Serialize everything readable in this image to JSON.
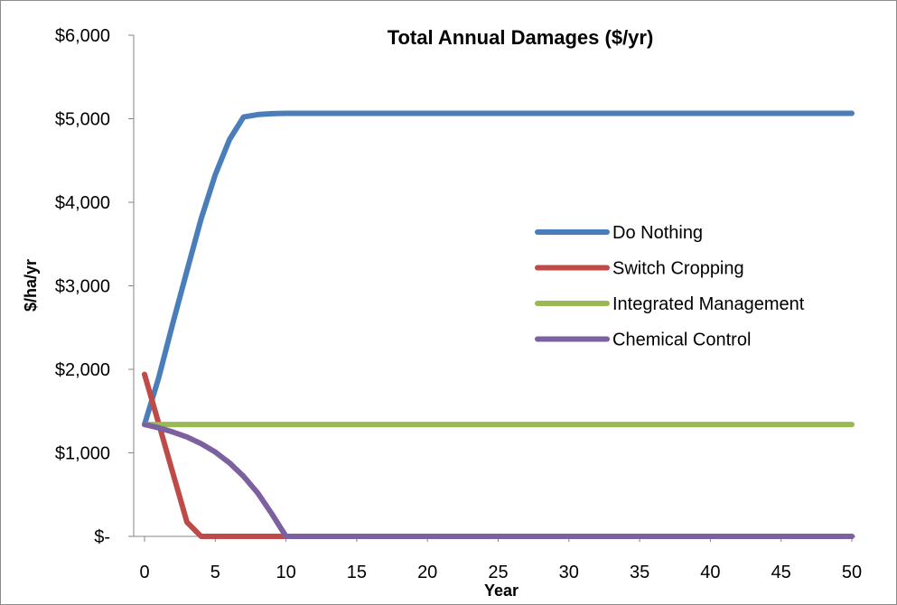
{
  "chart_data": {
    "type": "line",
    "title": "Total Annual Damages ($/yr)",
    "xlabel": "Year",
    "ylabel": "$/ha/yr",
    "xlim": [
      0,
      50
    ],
    "ylim": [
      0,
      6000
    ],
    "x_ticks": [
      0,
      5,
      10,
      15,
      20,
      25,
      30,
      35,
      40,
      45,
      50
    ],
    "x_tick_labels": [
      "0",
      "5",
      "10",
      "15",
      "20",
      "25",
      "30",
      "35",
      "40",
      "45",
      "50"
    ],
    "y_ticks": [
      0,
      1000,
      2000,
      3000,
      4000,
      5000,
      6000
    ],
    "y_tick_labels": [
      "$-",
      "$1,000",
      "$2,000",
      "$3,000",
      "$4,000",
      "$5,000",
      "$6,000"
    ],
    "grid": false,
    "legend_position": "right",
    "series": [
      {
        "name": "Do Nothing",
        "color": "#4a7ebb",
        "x": [
          0,
          1,
          2,
          3,
          4,
          5,
          6,
          7,
          8,
          9,
          10,
          15,
          20,
          25,
          30,
          35,
          40,
          45,
          50
        ],
        "y": [
          1340,
          1900,
          2550,
          3180,
          3800,
          4330,
          4750,
          5020,
          5050,
          5060,
          5065,
          5065,
          5065,
          5065,
          5065,
          5065,
          5065,
          5065,
          5065
        ]
      },
      {
        "name": "Switch Cropping",
        "color": "#be4b48",
        "x": [
          0,
          1,
          2,
          3,
          4,
          5,
          10,
          15,
          20,
          25,
          30,
          35,
          40,
          45,
          50
        ],
        "y": [
          1940,
          1350,
          760,
          170,
          0,
          0,
          0,
          0,
          0,
          0,
          0,
          0,
          0,
          0,
          0
        ]
      },
      {
        "name": "Integrated Management",
        "color": "#98b954",
        "x": [
          0,
          5,
          10,
          15,
          20,
          25,
          30,
          35,
          40,
          45,
          50
        ],
        "y": [
          1340,
          1340,
          1340,
          1340,
          1340,
          1340,
          1340,
          1340,
          1340,
          1340,
          1340
        ]
      },
      {
        "name": "Chemical Control",
        "color": "#7d60a0",
        "x": [
          0,
          1,
          2,
          3,
          4,
          5,
          6,
          7,
          8,
          9,
          10,
          15,
          20,
          25,
          30,
          35,
          40,
          45,
          50
        ],
        "y": [
          1340,
          1300,
          1250,
          1190,
          1110,
          1010,
          880,
          720,
          520,
          270,
          0,
          0,
          0,
          0,
          0,
          0,
          0,
          0,
          0
        ]
      }
    ]
  }
}
